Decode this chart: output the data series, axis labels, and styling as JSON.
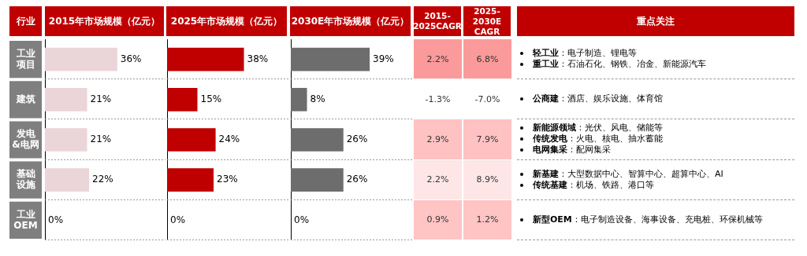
{
  "chart_data": [
    {
      "type": "bar",
      "orientation": "horizontal",
      "title": "2015年市场规模（亿元）",
      "ylabel": "行业",
      "categories": [
        "工业项目",
        "建筑",
        "发电&电网",
        "基础设施",
        "工业OEM"
      ],
      "values": [
        36,
        21,
        21,
        22,
        0
      ],
      "value_labels": [
        "36%",
        "21%",
        "21%",
        "22%",
        "0%"
      ],
      "color": "#ead5d8",
      "xlim": [
        0,
        60
      ],
      "grid": "y",
      "legend": false,
      "tick_labels": "y"
    },
    {
      "type": "bar",
      "orientation": "horizontal",
      "title": "2025年市场规模（亿元）",
      "categories": [
        null,
        null,
        null,
        null,
        null
      ],
      "values": [
        38,
        15,
        24,
        23,
        0
      ],
      "value_labels": [
        "38%",
        "15%",
        "24%",
        "23%",
        "0%"
      ],
      "color": "#c00000",
      "xlim": [
        0,
        60
      ],
      "grid": "y",
      "legend": false,
      "tick_labels": false
    },
    {
      "type": "bar",
      "orientation": "horizontal",
      "title": "2030E年市场规模（亿元）",
      "categories": [
        null,
        null,
        null,
        null,
        null
      ],
      "values": [
        39,
        8,
        26,
        26,
        0
      ],
      "value_labels": [
        "39%",
        "8%",
        "26%",
        "26%",
        "0%"
      ],
      "color": "#6d6d6d",
      "xlim": [
        0,
        60
      ],
      "grid": "y",
      "legend": false,
      "tick_labels": false
    },
    {
      "type": "other",
      "categories": [
        "2015-2025CAGR",
        "2025-2030E CAGR"
      ],
      "cell_labels": [
        [
          "2.2%",
          "6.8%"
        ],
        [
          "-1.3%",
          "-7.0%"
        ],
        [
          "2.9%",
          "7.9%"
        ],
        [
          "2.2%",
          "8.9%"
        ],
        [
          "0.9%",
          "1.2%"
        ]
      ],
      "colors": [
        [
          "#fb9a9a",
          "#fb9a9a"
        ],
        [
          "#ffffff",
          "#ffffff"
        ],
        [
          "#ffc2c2",
          "#ffc2c2"
        ],
        [
          "#ffe6e6",
          "#ffe6e6"
        ],
        [
          "#ffc4c4",
          "#ffc4c4"
        ]
      ]
    },
    {
      "type": "other",
      "title": "重点关注",
      "annotations": [
        {
          "text": "轻工业：电子制造、锂电等",
          "y": "工业项目"
        },
        {
          "text": "重工业：石油石化、钢铁、冶金、新能源汽车",
          "y": "工业项目"
        },
        {
          "text": "公商建：酒店、娱乐设施、体育馆",
          "y": "建筑"
        },
        {
          "text": "新能源领域：光伏、风电、储能等",
          "y": "发电&电网"
        },
        {
          "text": "传统发电：火电、核电、抽水蓄能",
          "y": "发电&电网"
        },
        {
          "text": "电网集采：配网集采",
          "y": "发电&电网"
        },
        {
          "text": "新基建：大型数据中心、智算中心、超算中心、AI",
          "y": "基础设施"
        },
        {
          "text": "传统基建：机场、铁路、港口等",
          "y": "基础设施"
        },
        {
          "text": "新型OEM：电子制造设备、海事设备、充电桩、环保机械等",
          "y": "工业OEM"
        }
      ]
    }
  ]
}
